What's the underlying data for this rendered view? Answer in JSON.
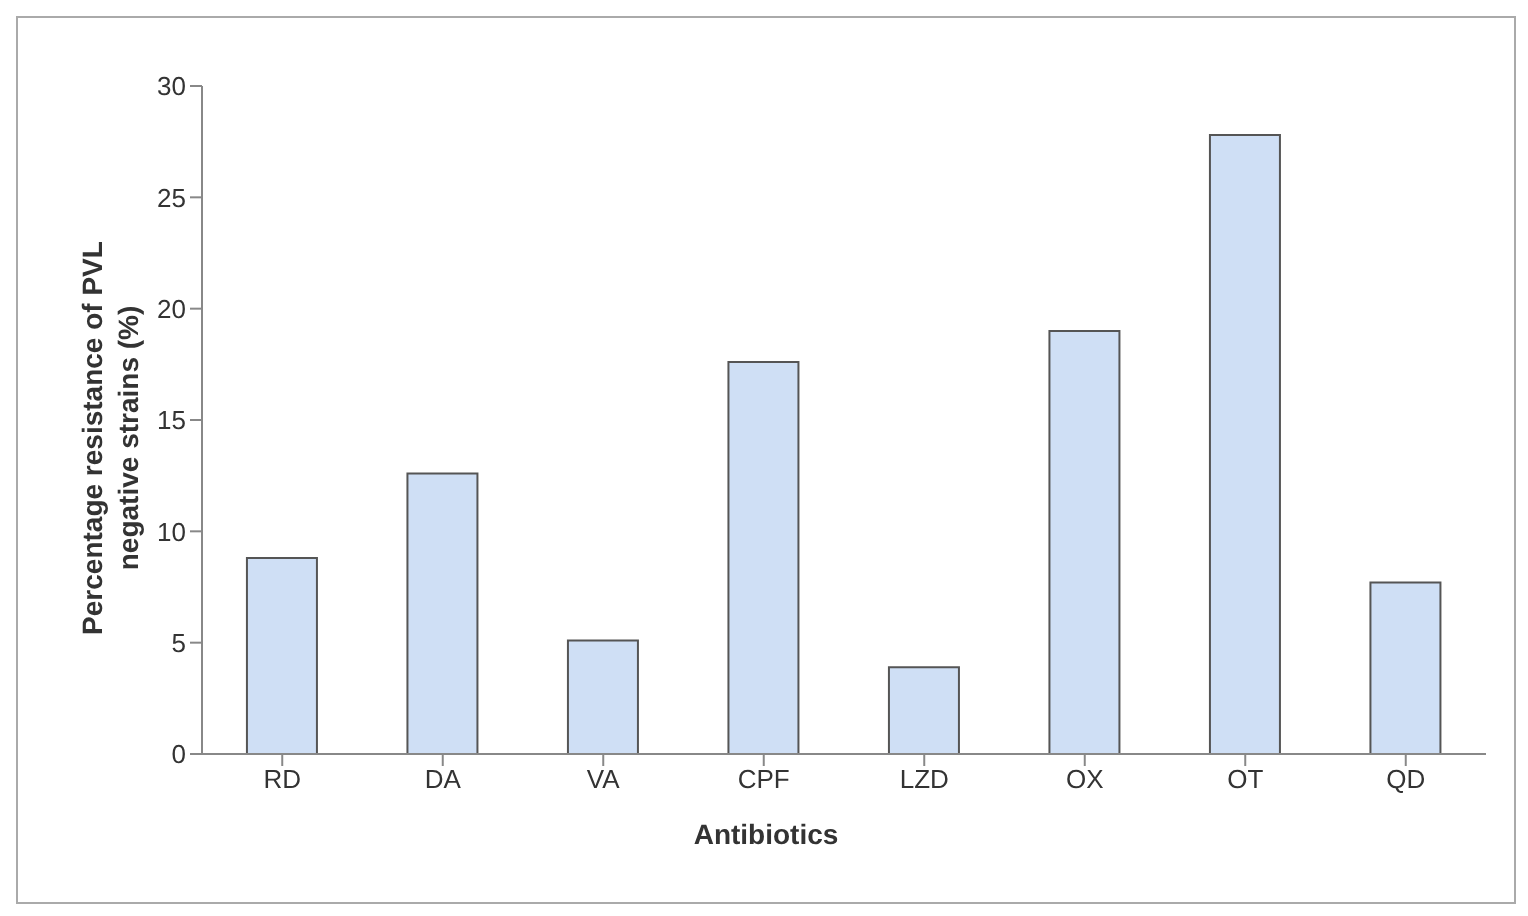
{
  "chart_data": {
    "type": "bar",
    "xlabel": "Antibiotics",
    "ylabel": "Percentage resistance of PVL negative strains (%)",
    "categories": [
      "RD",
      "DA",
      "VA",
      "CPF",
      "LZD",
      "OX",
      "OT",
      "QD"
    ],
    "values": [
      8.8,
      12.6,
      5.1,
      17.6,
      3.9,
      19.0,
      27.8,
      7.7
    ],
    "color": "#cfdff5",
    "ylim": [
      0,
      30
    ],
    "yticks": [
      0,
      5,
      10,
      15,
      20,
      25,
      30
    ],
    "grid": false,
    "legend": false
  }
}
